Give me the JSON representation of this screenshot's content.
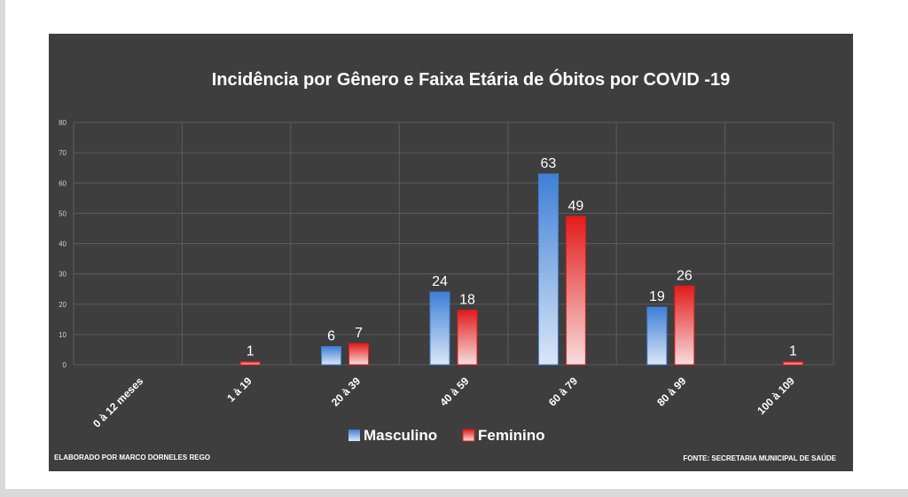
{
  "colors": {
    "background": "#3e3e3e",
    "masculino": "#3f7fd6",
    "feminino": "#e21b1b",
    "text": "#ffffff",
    "grid": "#5c5c5c"
  },
  "chart_data": {
    "type": "bar",
    "title": "Incidência por Gênero e Faixa Etária de Óbitos por COVID -19",
    "categories": [
      "0 à 12 meses",
      "1 à 19",
      "20 à 39",
      "40 à 59",
      "60 à 79",
      "80 à 99",
      "100 à 109"
    ],
    "series": [
      {
        "name": "Masculino",
        "values": [
          0,
          0,
          6,
          24,
          63,
          19,
          0
        ],
        "labels": [
          "",
          "",
          "6",
          "24",
          "63",
          "19",
          ""
        ]
      },
      {
        "name": "Feminino",
        "values": [
          0,
          1,
          7,
          18,
          49,
          26,
          1
        ],
        "labels": [
          "",
          "1",
          "7",
          "18",
          "49",
          "26",
          "1"
        ]
      }
    ],
    "ylim": [
      0,
      80
    ],
    "yticks": [
      "0",
      "10",
      "20",
      "30",
      "40",
      "50",
      "60",
      "70",
      "80"
    ],
    "grid": true,
    "legend": "bottom"
  },
  "footer": {
    "left": "ELABORADO POR MARCO DORNELES REGO",
    "right": "FONTE: SECRETARIA MUNICIPAL DE SAÚDE"
  }
}
